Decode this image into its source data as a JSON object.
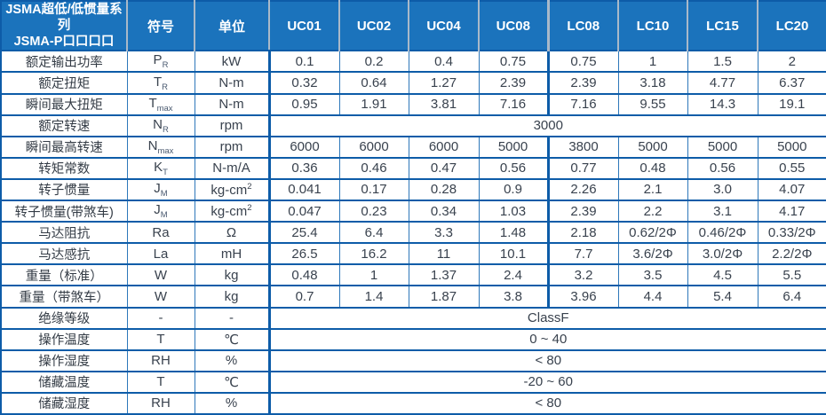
{
  "table": {
    "header": {
      "title_line1": "JSMA超低/低惯量系列",
      "title_line2": "JSMA-P口口口口",
      "symbol_col": "符号",
      "unit_col": "单位",
      "models": [
        "UC01",
        "UC02",
        "UC04",
        "UC08",
        "LC08",
        "LC10",
        "LC15",
        "LC20"
      ]
    },
    "rows": [
      {
        "label": "额定输出功率",
        "symbol": "P",
        "symbol_sub": "R",
        "unit": "kW",
        "values": [
          "0.1",
          "0.2",
          "0.4",
          "0.75",
          "0.75",
          "1",
          "1.5",
          "2"
        ]
      },
      {
        "label": "额定扭矩",
        "symbol": "T",
        "symbol_sub": "R",
        "unit": "N-m",
        "values": [
          "0.32",
          "0.64",
          "1.27",
          "2.39",
          "2.39",
          "3.18",
          "4.77",
          "6.37"
        ]
      },
      {
        "label": "瞬间最大扭矩",
        "symbol": "T",
        "symbol_sub": "max",
        "unit": "N-m",
        "values": [
          "0.95",
          "1.91",
          "3.81",
          "7.16",
          "7.16",
          "9.55",
          "14.3",
          "19.1"
        ]
      },
      {
        "label": "额定转速",
        "symbol": "N",
        "symbol_sub": "R",
        "unit": "rpm",
        "merged": "3000"
      },
      {
        "label": "瞬间最高转速",
        "symbol": "N",
        "symbol_sub": "max",
        "unit": "rpm",
        "values": [
          "6000",
          "6000",
          "6000",
          "5000",
          "3800",
          "5000",
          "5000",
          "5000"
        ]
      },
      {
        "label": "转矩常数",
        "symbol": "K",
        "symbol_sub": "T",
        "unit": "N-m/A",
        "values": [
          "0.36",
          "0.46",
          "0.47",
          "0.56",
          "0.77",
          "0.48",
          "0.56",
          "0.55"
        ]
      },
      {
        "label": "转子惯量",
        "symbol": "J",
        "symbol_sub": "M",
        "unit": "kg-cm",
        "unit_sup": "2",
        "values": [
          "0.041",
          "0.17",
          "0.28",
          "0.9",
          "2.26",
          "2.1",
          "3.0",
          "4.07"
        ]
      },
      {
        "label": "转子惯量(带煞车)",
        "symbol": "J",
        "symbol_sub": "M",
        "unit": "kg-cm",
        "unit_sup": "2",
        "values": [
          "0.047",
          "0.23",
          "0.34",
          "1.03",
          "2.39",
          "2.2",
          "3.1",
          "4.17"
        ]
      },
      {
        "label": "马达阻抗",
        "symbol": "Ra",
        "unit": "Ω",
        "values": [
          "25.4",
          "6.4",
          "3.3",
          "1.48",
          "2.18",
          "0.62/2Φ",
          "0.46/2Φ",
          "0.33/2Φ"
        ]
      },
      {
        "label": "马达感抗",
        "symbol": "La",
        "unit": "mH",
        "values": [
          "26.5",
          "16.2",
          "11",
          "10.1",
          "7.7",
          "3.6/2Φ",
          "3.0/2Φ",
          "2.2/2Φ"
        ]
      },
      {
        "label": "重量（标准）",
        "symbol": "W",
        "unit": "kg",
        "values": [
          "0.48",
          "1",
          "1.37",
          "2.4",
          "3.2",
          "3.5",
          "4.5",
          "5.5"
        ]
      },
      {
        "label": "重量（带煞车）",
        "symbol": "W",
        "unit": "kg",
        "values": [
          "0.7",
          "1.4",
          "1.87",
          "3.8",
          "3.96",
          "4.4",
          "5.4",
          "6.4"
        ]
      },
      {
        "label": "绝缘等级",
        "symbol": "-",
        "unit": "-",
        "merged": "ClassF"
      },
      {
        "label": "操作温度",
        "symbol": "T",
        "unit": "℃",
        "merged": "0 ~ 40"
      },
      {
        "label": "操作湿度",
        "symbol": "RH",
        "unit": "%",
        "merged": "< 80"
      },
      {
        "label": "储藏温度",
        "symbol": "T",
        "unit": "℃",
        "merged": "-20 ~ 60"
      },
      {
        "label": "储藏湿度",
        "symbol": "RH",
        "unit": "%",
        "merged": "< 80"
      }
    ],
    "colors": {
      "header_bg": "#1b73bc",
      "header_text": "#ffffff",
      "border_dark": "#0d5ca8",
      "border_light": "#2e78ba",
      "header_divider": "#a9b9c9",
      "body_text": "#39424e"
    }
  }
}
